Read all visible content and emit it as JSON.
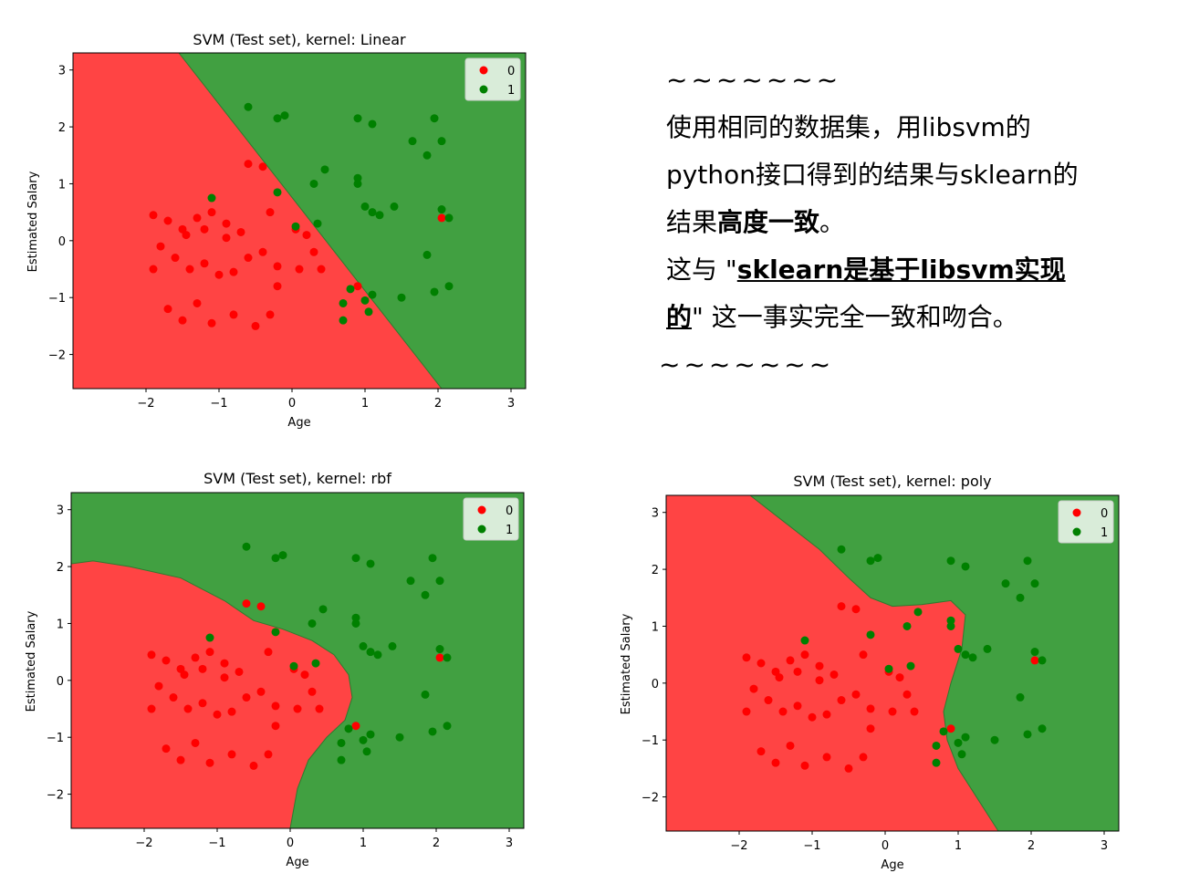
{
  "colors": {
    "class0": "#ff0000",
    "class1": "#008000",
    "region0": "#ff4444",
    "region1": "#41a041"
  },
  "chart_data": [
    {
      "type": "scatter",
      "title": "SVM (Test set), kernel: Linear",
      "xlabel": "Age",
      "ylabel": "Estimated Salary",
      "xlim": [
        -3,
        3.2
      ],
      "ylim": [
        -2.6,
        3.3
      ],
      "xticks": [
        -2,
        -1,
        0,
        1,
        2,
        3
      ],
      "yticks": [
        -2,
        -1,
        0,
        1,
        2,
        3
      ],
      "xtick_labels": [
        "−2",
        "−1",
        "0",
        "1",
        "2",
        "3"
      ],
      "ytick_labels": [
        "−2",
        "−1",
        "0",
        "1",
        "2",
        "3"
      ],
      "grid": false,
      "legend": {
        "position": "top-right",
        "entries": [
          "0",
          "1"
        ]
      },
      "decision_boundary": [
        [
          -1.55,
          3.3
        ],
        [
          2.05,
          -2.6
        ]
      ],
      "series": [
        {
          "name": "0",
          "color": "#ff0000",
          "points": [
            [
              -1.9,
              0.45
            ],
            [
              -1.7,
              0.35
            ],
            [
              -1.5,
              0.2
            ],
            [
              -1.3,
              0.4
            ],
            [
              -1.1,
              0.5
            ],
            [
              -0.9,
              0.3
            ],
            [
              -0.7,
              0.15
            ],
            [
              -1.8,
              -0.1
            ],
            [
              -1.6,
              -0.3
            ],
            [
              -1.4,
              -0.5
            ],
            [
              -1.2,
              -0.4
            ],
            [
              -1.0,
              -0.6
            ],
            [
              -0.8,
              -0.55
            ],
            [
              -0.6,
              -0.3
            ],
            [
              -0.4,
              -0.2
            ],
            [
              -0.2,
              -0.45
            ],
            [
              -1.9,
              -0.5
            ],
            [
              -1.7,
              -1.2
            ],
            [
              -1.5,
              -1.4
            ],
            [
              -1.3,
              -1.1
            ],
            [
              -1.1,
              -1.45
            ],
            [
              -0.8,
              -1.3
            ],
            [
              -0.5,
              -1.5
            ],
            [
              -0.3,
              -1.3
            ],
            [
              -0.6,
              1.35
            ],
            [
              -0.4,
              1.3
            ],
            [
              0.05,
              0.2
            ],
            [
              0.2,
              0.1
            ],
            [
              0.3,
              -0.2
            ],
            [
              0.4,
              -0.5
            ],
            [
              0.1,
              -0.5
            ],
            [
              -0.2,
              -0.8
            ],
            [
              0.9,
              -0.8
            ],
            [
              2.05,
              0.4
            ],
            [
              -1.2,
              0.2
            ],
            [
              -0.9,
              0.05
            ],
            [
              -1.45,
              0.1
            ],
            [
              -0.3,
              0.5
            ]
          ]
        },
        {
          "name": "1",
          "color": "#008000",
          "points": [
            [
              -0.6,
              2.35
            ],
            [
              -0.2,
              2.15
            ],
            [
              -0.1,
              2.2
            ],
            [
              0.9,
              2.15
            ],
            [
              1.1,
              2.05
            ],
            [
              1.95,
              2.15
            ],
            [
              2.05,
              1.75
            ],
            [
              1.65,
              1.75
            ],
            [
              1.85,
              1.5
            ],
            [
              0.3,
              1.0
            ],
            [
              0.45,
              1.25
            ],
            [
              0.9,
              1.0
            ],
            [
              0.9,
              1.1
            ],
            [
              1.1,
              0.5
            ],
            [
              1.0,
              0.6
            ],
            [
              1.4,
              0.6
            ],
            [
              2.05,
              0.55
            ],
            [
              2.15,
              0.4
            ],
            [
              1.2,
              0.45
            ],
            [
              0.05,
              0.25
            ],
            [
              0.35,
              0.3
            ],
            [
              -0.2,
              0.85
            ],
            [
              -1.1,
              0.75
            ],
            [
              0.7,
              -1.1
            ],
            [
              0.8,
              -0.85
            ],
            [
              0.7,
              -1.4
            ],
            [
              1.0,
              -1.05
            ],
            [
              1.05,
              -1.25
            ],
            [
              1.1,
              -0.95
            ],
            [
              1.5,
              -1.0
            ],
            [
              1.85,
              -0.25
            ],
            [
              1.95,
              -0.9
            ],
            [
              2.15,
              -0.8
            ]
          ]
        }
      ]
    },
    {
      "type": "scatter",
      "title": "SVM (Test set), kernel: rbf",
      "xlabel": "Age",
      "ylabel": "Estimated Salary",
      "xlim": [
        -3,
        3.2
      ],
      "ylim": [
        -2.6,
        3.3
      ],
      "xticks": [
        -2,
        -1,
        0,
        1,
        2,
        3
      ],
      "yticks": [
        -2,
        -1,
        0,
        1,
        2,
        3
      ],
      "xtick_labels": [
        "−2",
        "−1",
        "0",
        "1",
        "2",
        "3"
      ],
      "ytick_labels": [
        "−2",
        "−1",
        "0",
        "1",
        "2",
        "3"
      ],
      "grid": false,
      "legend": {
        "position": "top-right",
        "entries": [
          "0",
          "1"
        ]
      },
      "decision_boundary": [
        [
          -3.0,
          2.05
        ],
        [
          -2.7,
          2.1
        ],
        [
          -2.2,
          2.0
        ],
        [
          -1.5,
          1.8
        ],
        [
          -0.9,
          1.4
        ],
        [
          -0.5,
          1.05
        ],
        [
          -0.1,
          0.9
        ],
        [
          0.3,
          0.7
        ],
        [
          0.6,
          0.45
        ],
        [
          0.8,
          0.1
        ],
        [
          0.85,
          -0.3
        ],
        [
          0.75,
          -0.7
        ],
        [
          0.5,
          -1.0
        ],
        [
          0.25,
          -1.4
        ],
        [
          0.1,
          -1.9
        ],
        [
          0.0,
          -2.6
        ]
      ],
      "series": [
        {
          "name": "0",
          "color": "#ff0000",
          "points": [
            [
              -1.9,
              0.45
            ],
            [
              -1.7,
              0.35
            ],
            [
              -1.5,
              0.2
            ],
            [
              -1.3,
              0.4
            ],
            [
              -1.1,
              0.5
            ],
            [
              -0.9,
              0.3
            ],
            [
              -0.7,
              0.15
            ],
            [
              -1.8,
              -0.1
            ],
            [
              -1.6,
              -0.3
            ],
            [
              -1.4,
              -0.5
            ],
            [
              -1.2,
              -0.4
            ],
            [
              -1.0,
              -0.6
            ],
            [
              -0.8,
              -0.55
            ],
            [
              -0.6,
              -0.3
            ],
            [
              -0.4,
              -0.2
            ],
            [
              -0.2,
              -0.45
            ],
            [
              -1.9,
              -0.5
            ],
            [
              -1.7,
              -1.2
            ],
            [
              -1.5,
              -1.4
            ],
            [
              -1.3,
              -1.1
            ],
            [
              -1.1,
              -1.45
            ],
            [
              -0.8,
              -1.3
            ],
            [
              -0.5,
              -1.5
            ],
            [
              -0.3,
              -1.3
            ],
            [
              -0.6,
              1.35
            ],
            [
              -0.4,
              1.3
            ],
            [
              0.05,
              0.2
            ],
            [
              0.2,
              0.1
            ],
            [
              0.3,
              -0.2
            ],
            [
              0.4,
              -0.5
            ],
            [
              0.1,
              -0.5
            ],
            [
              -0.2,
              -0.8
            ],
            [
              0.9,
              -0.8
            ],
            [
              2.05,
              0.4
            ],
            [
              -1.2,
              0.2
            ],
            [
              -0.9,
              0.05
            ],
            [
              -1.45,
              0.1
            ],
            [
              -0.3,
              0.5
            ]
          ]
        },
        {
          "name": "1",
          "color": "#008000",
          "points": [
            [
              -0.6,
              2.35
            ],
            [
              -0.2,
              2.15
            ],
            [
              -0.1,
              2.2
            ],
            [
              0.9,
              2.15
            ],
            [
              1.1,
              2.05
            ],
            [
              1.95,
              2.15
            ],
            [
              2.05,
              1.75
            ],
            [
              1.65,
              1.75
            ],
            [
              1.85,
              1.5
            ],
            [
              0.3,
              1.0
            ],
            [
              0.45,
              1.25
            ],
            [
              0.9,
              1.0
            ],
            [
              0.9,
              1.1
            ],
            [
              1.1,
              0.5
            ],
            [
              1.0,
              0.6
            ],
            [
              1.4,
              0.6
            ],
            [
              2.05,
              0.55
            ],
            [
              2.15,
              0.4
            ],
            [
              1.2,
              0.45
            ],
            [
              0.05,
              0.25
            ],
            [
              0.35,
              0.3
            ],
            [
              -0.2,
              0.85
            ],
            [
              -1.1,
              0.75
            ],
            [
              0.7,
              -1.1
            ],
            [
              0.8,
              -0.85
            ],
            [
              0.7,
              -1.4
            ],
            [
              1.0,
              -1.05
            ],
            [
              1.05,
              -1.25
            ],
            [
              1.1,
              -0.95
            ],
            [
              1.5,
              -1.0
            ],
            [
              1.85,
              -0.25
            ],
            [
              1.95,
              -0.9
            ],
            [
              2.15,
              -0.8
            ]
          ]
        }
      ]
    },
    {
      "type": "scatter",
      "title": "SVM (Test set), kernel: poly",
      "xlabel": "Age",
      "ylabel": "Estimated Salary",
      "xlim": [
        -3,
        3.2
      ],
      "ylim": [
        -2.6,
        3.3
      ],
      "xticks": [
        -2,
        -1,
        0,
        1,
        2,
        3
      ],
      "yticks": [
        -2,
        -1,
        0,
        1,
        2,
        3
      ],
      "xtick_labels": [
        "−2",
        "−1",
        "0",
        "1",
        "2",
        "3"
      ],
      "ytick_labels": [
        "−2",
        "−1",
        "0",
        "1",
        "2",
        "3"
      ],
      "grid": false,
      "legend": {
        "position": "top-right",
        "entries": [
          "0",
          "1"
        ]
      },
      "decision_boundary": [
        [
          -1.85,
          3.3
        ],
        [
          -1.4,
          2.85
        ],
        [
          -0.9,
          2.35
        ],
        [
          -0.5,
          1.85
        ],
        [
          -0.2,
          1.5
        ],
        [
          0.1,
          1.35
        ],
        [
          0.5,
          1.38
        ],
        [
          0.9,
          1.45
        ],
        [
          1.1,
          1.2
        ],
        [
          1.05,
          0.6
        ],
        [
          0.9,
          0.0
        ],
        [
          0.8,
          -0.5
        ],
        [
          0.85,
          -1.0
        ],
        [
          1.0,
          -1.5
        ],
        [
          1.25,
          -2.0
        ],
        [
          1.55,
          -2.6
        ]
      ],
      "series": [
        {
          "name": "0",
          "color": "#ff0000",
          "points": [
            [
              -1.9,
              0.45
            ],
            [
              -1.7,
              0.35
            ],
            [
              -1.5,
              0.2
            ],
            [
              -1.3,
              0.4
            ],
            [
              -1.1,
              0.5
            ],
            [
              -0.9,
              0.3
            ],
            [
              -0.7,
              0.15
            ],
            [
              -1.8,
              -0.1
            ],
            [
              -1.6,
              -0.3
            ],
            [
              -1.4,
              -0.5
            ],
            [
              -1.2,
              -0.4
            ],
            [
              -1.0,
              -0.6
            ],
            [
              -0.8,
              -0.55
            ],
            [
              -0.6,
              -0.3
            ],
            [
              -0.4,
              -0.2
            ],
            [
              -0.2,
              -0.45
            ],
            [
              -1.9,
              -0.5
            ],
            [
              -1.7,
              -1.2
            ],
            [
              -1.5,
              -1.4
            ],
            [
              -1.3,
              -1.1
            ],
            [
              -1.1,
              -1.45
            ],
            [
              -0.8,
              -1.3
            ],
            [
              -0.5,
              -1.5
            ],
            [
              -0.3,
              -1.3
            ],
            [
              -0.6,
              1.35
            ],
            [
              -0.4,
              1.3
            ],
            [
              0.05,
              0.2
            ],
            [
              0.2,
              0.1
            ],
            [
              0.3,
              -0.2
            ],
            [
              0.4,
              -0.5
            ],
            [
              0.1,
              -0.5
            ],
            [
              -0.2,
              -0.8
            ],
            [
              0.9,
              -0.8
            ],
            [
              2.05,
              0.4
            ],
            [
              -1.2,
              0.2
            ],
            [
              -0.9,
              0.05
            ],
            [
              -1.45,
              0.1
            ],
            [
              -0.3,
              0.5
            ]
          ]
        },
        {
          "name": "1",
          "color": "#008000",
          "points": [
            [
              -0.6,
              2.35
            ],
            [
              -0.2,
              2.15
            ],
            [
              -0.1,
              2.2
            ],
            [
              0.9,
              2.15
            ],
            [
              1.1,
              2.05
            ],
            [
              1.95,
              2.15
            ],
            [
              2.05,
              1.75
            ],
            [
              1.65,
              1.75
            ],
            [
              1.85,
              1.5
            ],
            [
              0.3,
              1.0
            ],
            [
              0.45,
              1.25
            ],
            [
              0.9,
              1.0
            ],
            [
              0.9,
              1.1
            ],
            [
              1.1,
              0.5
            ],
            [
              1.0,
              0.6
            ],
            [
              1.4,
              0.6
            ],
            [
              2.05,
              0.55
            ],
            [
              2.15,
              0.4
            ],
            [
              1.2,
              0.45
            ],
            [
              0.05,
              0.25
            ],
            [
              0.35,
              0.3
            ],
            [
              -0.2,
              0.85
            ],
            [
              -1.1,
              0.75
            ],
            [
              0.7,
              -1.1
            ],
            [
              0.8,
              -0.85
            ],
            [
              0.7,
              -1.4
            ],
            [
              1.0,
              -1.05
            ],
            [
              1.05,
              -1.25
            ],
            [
              1.1,
              -0.95
            ],
            [
              1.5,
              -1.0
            ],
            [
              1.85,
              -0.25
            ],
            [
              1.95,
              -0.9
            ],
            [
              2.15,
              -0.8
            ]
          ]
        }
      ]
    }
  ],
  "note": {
    "tilde_top": "~~~~~~~",
    "p1_text": "使用相同的数据集，用libsvm的python接口得到的结果与sklearn的结果",
    "p1_bold": "高度一致",
    "p1_end": "。",
    "p2_prefix": "这与 \"",
    "p2_bold": "sklearn是基于libsvm实现的",
    "p2_suffix": "\" 这一事实完全一致和吻合。",
    "tilde_bottom": "~~~~~~~"
  }
}
